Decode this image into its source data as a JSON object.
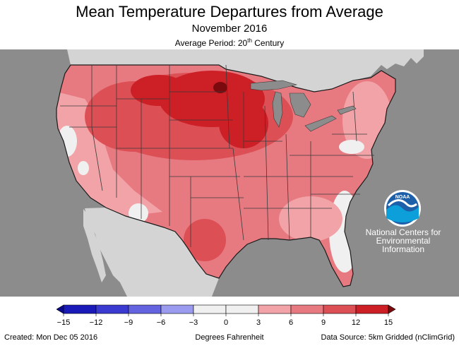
{
  "header": {
    "title": "Mean Temperature Departures from Average",
    "subtitle": "November 2016",
    "period_prefix": "Average Period: 20",
    "period_sup": "th",
    "period_suffix": " Century"
  },
  "map": {
    "ocean_color": "#8c8c8c",
    "land_color": "#d4d4d4",
    "lake_color": "#8c8c8c",
    "state_line_color": "#3a3a3a",
    "region": "CONUS"
  },
  "logo": {
    "name": "noaa-logo",
    "text": "NOAA",
    "caption_lines": [
      "National Centers for",
      "Environmental",
      "Information"
    ]
  },
  "legend": {
    "ticks": [
      "−15",
      "−12",
      "−9",
      "−6",
      "−3",
      "0",
      "3",
      "6",
      "9",
      "12",
      "15"
    ],
    "colors": [
      "#1a1ab8",
      "#3a3ad0",
      "#6464e0",
      "#9a9aee",
      "#f0f0f0",
      "#f0f0f0",
      "#f2a3a8",
      "#e77a80",
      "#dc4f55",
      "#cc1f26"
    ],
    "under_color": "#0a0a8a",
    "over_color": "#7a0a0d"
  },
  "footer": {
    "created": "Created: Mon Dec 05 2016",
    "units": "Degrees Fahrenheit",
    "source": "Data Source: 5km Gridded (nClimGrid)"
  }
}
